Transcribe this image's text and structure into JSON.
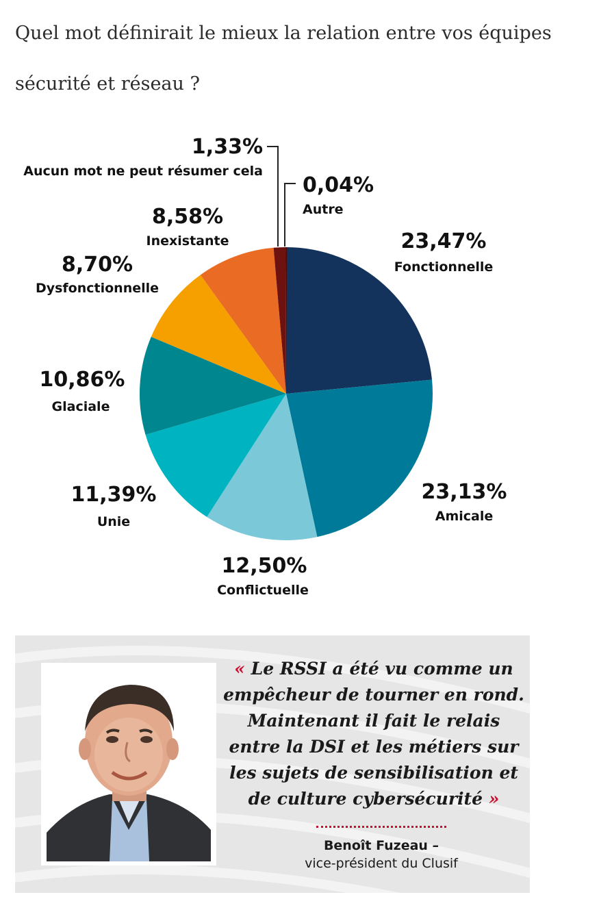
{
  "question": "Quel mot définirait le mieux la relation entre vos équipes sécurité et réseau ?",
  "chart_data": {
    "type": "pie",
    "categories": [
      "Fonctionnelle",
      "Amicale",
      "Conflictuelle",
      "Unie",
      "Glaciale",
      "Dysfonctionnelle",
      "Inexistante",
      "Aucun mot ne peut résumer cela",
      "Autre"
    ],
    "values": [
      23.47,
      23.13,
      12.5,
      11.39,
      10.86,
      8.7,
      8.58,
      1.33,
      0.04
    ],
    "labels": [
      "23,47%",
      "23,13%",
      "12,50%",
      "11,39%",
      "10,86%",
      "8,70%",
      "8,58%",
      "1,33%",
      "0,04%"
    ],
    "colors": [
      "#14335c",
      "#007a99",
      "#7ac8d8",
      "#00b3c1",
      "#00868f",
      "#f6a000",
      "#ea6b24",
      "#6e1210",
      "#4a0b0b"
    ]
  },
  "quote": {
    "open_mark": "«",
    "text": "Le RSSI a été vu comme un empêcheur de tourner en rond. Maintenant il fait le relais entre la DSI et les métiers sur les sujets de sensibilisation et de culture cybersécurité",
    "close_mark": "»",
    "author_name": "Benoît Fuzeau –",
    "author_title": "vice-président du Clusif"
  }
}
